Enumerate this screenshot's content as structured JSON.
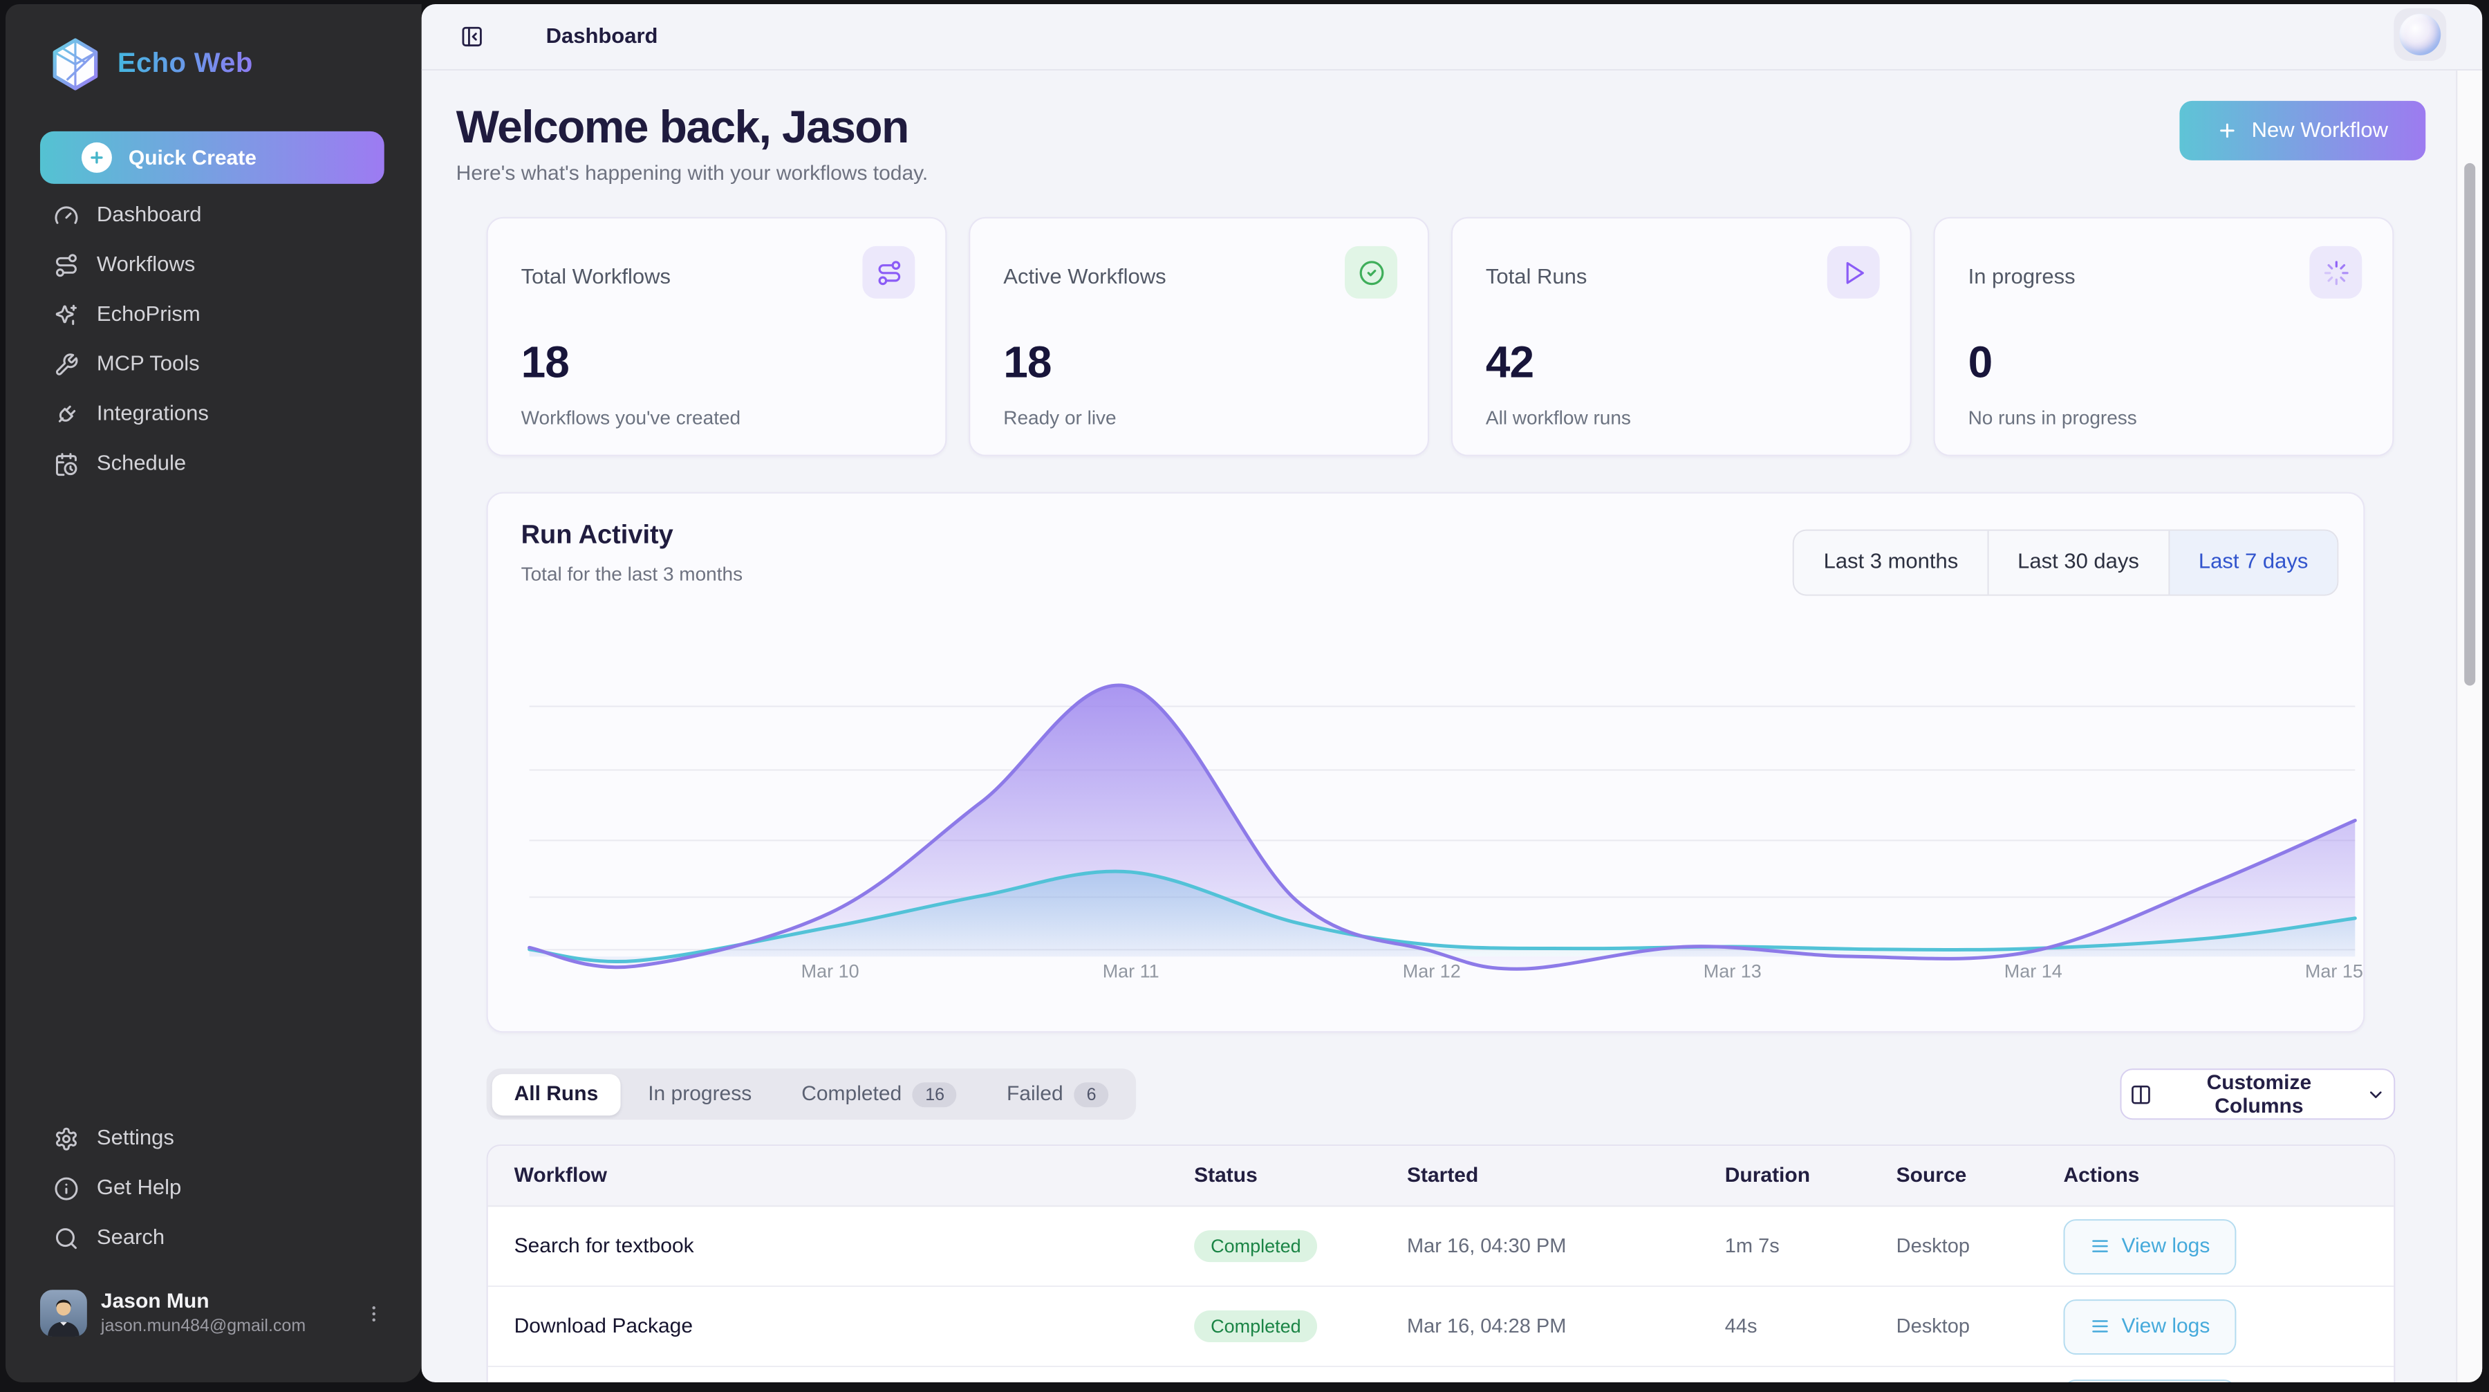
{
  "app": {
    "name": "Echo Web"
  },
  "sidebar": {
    "quick_create": "Quick Create",
    "nav": [
      {
        "icon": "gauge-icon",
        "label": "Dashboard"
      },
      {
        "icon": "workflow-route-icon",
        "label": "Workflows"
      },
      {
        "icon": "sparkles-icon",
        "label": "EchoPrism"
      },
      {
        "icon": "wrench-icon",
        "label": "MCP Tools"
      },
      {
        "icon": "plug-icon",
        "label": "Integrations"
      },
      {
        "icon": "calendar-clock-icon",
        "label": "Schedule"
      }
    ],
    "footer_nav": [
      {
        "icon": "gear-icon",
        "label": "Settings"
      },
      {
        "icon": "info-icon",
        "label": "Get Help"
      },
      {
        "icon": "search-icon",
        "label": "Search"
      }
    ],
    "user": {
      "name": "Jason Mun",
      "email": "jason.mun484@gmail.com"
    }
  },
  "topbar": {
    "title": "Dashboard"
  },
  "header": {
    "title": "Welcome back, Jason",
    "subtitle": "Here's what's happening with your workflows today.",
    "new_workflow_label": "New Workflow"
  },
  "stats": [
    {
      "label": "Total Workflows",
      "value": "18",
      "sublabel": "Workflows you've created",
      "icon": "workflow-route-icon",
      "accent": "#8b5cf6"
    },
    {
      "label": "Active Workflows",
      "value": "18",
      "sublabel": "Ready or live",
      "icon": "circle-check-icon",
      "accent": "#3fae5a"
    },
    {
      "label": "Total Runs",
      "value": "42",
      "sublabel": "All workflow runs",
      "icon": "play-icon",
      "accent": "#8b5cf6"
    },
    {
      "label": "In progress",
      "value": "0",
      "sublabel": "No runs in progress",
      "icon": "loader-icon",
      "accent": "#8b5cf6"
    }
  ],
  "activity": {
    "title": "Run Activity",
    "subtitle": "Total for the last 3 months",
    "ranges": [
      "Last 3 months",
      "Last 30 days",
      "Last 7 days"
    ],
    "selected_range": "Last 7 days"
  },
  "chart_data": {
    "type": "area",
    "title": "Run Activity",
    "subtitle": "Total for the last 3 months",
    "x_labels": [
      "Mar 10",
      "Mar 11",
      "Mar 12",
      "Mar 13",
      "Mar 14",
      "Mar 15"
    ],
    "label_days": [
      1,
      2,
      3,
      4,
      5,
      6
    ],
    "x_domain_days": [
      0,
      6.07
    ],
    "ylim": [
      -2,
      32
    ],
    "units": "runs (approx, y-axis unlabeled)",
    "grid": "horizontal",
    "legend": "none",
    "series": [
      {
        "name": "all-runs-purple",
        "color": "#8d7ae8",
        "points": [
          [
            0,
            0.7
          ],
          [
            0.35,
            -1.4
          ],
          [
            1,
            4.6
          ],
          [
            1.5,
            17
          ],
          [
            2,
            30
          ],
          [
            2.55,
            6
          ],
          [
            3,
            0.3
          ],
          [
            3.3,
            -1.7
          ],
          [
            3.85,
            0.8
          ],
          [
            4.4,
            -0.3
          ],
          [
            5,
            0.3
          ],
          [
            5.6,
            8
          ],
          [
            6.07,
            15
          ]
        ]
      },
      {
        "name": "completed-runs-cyan",
        "color": "#52c2d7",
        "points": [
          [
            0,
            0.5
          ],
          [
            0.35,
            -0.8
          ],
          [
            1,
            3
          ],
          [
            1.5,
            6.5
          ],
          [
            2,
            9.2
          ],
          [
            2.55,
            3.5
          ],
          [
            3,
            1
          ],
          [
            3.5,
            0.6
          ],
          [
            4,
            0.8
          ],
          [
            4.5,
            0.5
          ],
          [
            5,
            0.6
          ],
          [
            5.6,
            1.8
          ],
          [
            6.07,
            4
          ]
        ]
      }
    ]
  },
  "runs_section": {
    "tabs": [
      {
        "label": "All Runs",
        "active": true
      },
      {
        "label": "In progress"
      },
      {
        "label": "Completed",
        "badge": "16"
      },
      {
        "label": "Failed",
        "badge": "6"
      }
    ],
    "customize_label": "Customize Columns",
    "table": {
      "columns": [
        "Workflow",
        "Status",
        "Started",
        "Duration",
        "Source",
        "Actions"
      ],
      "rows": [
        {
          "workflow": "Search for textbook",
          "status": "Completed",
          "started": "Mar 16, 04:30 PM",
          "duration": "1m 7s",
          "source": "Desktop",
          "action": "View logs"
        },
        {
          "workflow": "Download Package",
          "status": "Completed",
          "started": "Mar 16, 04:28 PM",
          "duration": "44s",
          "source": "Desktop",
          "action": "View logs"
        }
      ]
    }
  },
  "colors": {
    "brand_gradient_start": "#54c2d2",
    "brand_gradient_end": "#9d7bf2",
    "accent_purple": "#8b5cf6",
    "success_green": "#1a8445",
    "selected_range_blue": "#3154cd",
    "view_logs_blue": "#46aadb",
    "chart_purple": "#8d7ae8",
    "chart_cyan": "#52c2d7",
    "sidebar_bg": "#2b2b2d",
    "content_bg": "#f3f4f9"
  }
}
